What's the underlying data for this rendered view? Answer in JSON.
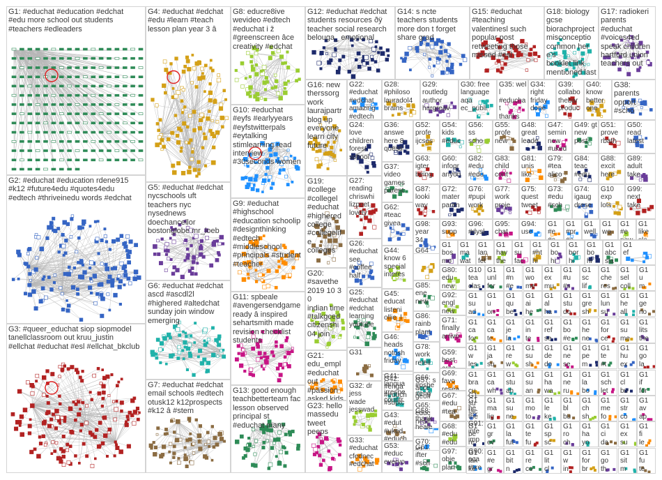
{
  "image_title": "",
  "groups": [
    {
      "id": "G1",
      "label": "G1: #educhat #education #edchat\n#edu more school out students\n#teachers #edleaders"
    },
    {
      "id": "G2",
      "label": "G2: #educhat #education rdene915\n#k12 #future4edu #quotes4edu\n#edtech #thriveinedu words #edchat"
    },
    {
      "id": "G3",
      "label": "G3: #queer_educhat siop siopmodel\ntanellclassroom out kruu_justin\n#ellchat #educhat #esl #ellchat_bkclub"
    },
    {
      "id": "G4",
      "label": "G4: #educhat #edchat\n#edu #learn #teach\nlesson plan year 3 â"
    },
    {
      "id": "G5",
      "label": "G5: #educhat #edchat\nnycschools uft\nteachers nyc\nnysednews\ndoechancellor\nbostonglobe mr_loeb"
    },
    {
      "id": "G6",
      "label": "G6: #educhat #edchat\nascd #ascdl2l\n#highered #altedchat\nsunday join window\nemerging"
    },
    {
      "id": "G7",
      "label": "G7: #educhat #edchat\nemail schools #edtech\notusk12 k12prospects\n#k12 â #stem"
    },
    {
      "id": "G8",
      "label": "G8: educre8ive\nwevideo #edtech\n#educhat i ž\n#greenscreen âce\ncreativity #edchat"
    },
    {
      "id": "G9",
      "label": "G9: #educhat\n#highschool\n#education schoolip\n#designthinking\n#edtech\n#middleschool\n#principals #student\n#teacher"
    },
    {
      "id": "G10",
      "label": "G10: #educhat\n#eyfs #earlyyears\n#eyfstwitterpals\n#eytalking\nstimlearning read\ninterview\n#30seconds women"
    },
    {
      "id": "G11",
      "label": "G11: spbeale\n#avengersendgame\nready â inspired\nsehartsmith made\nrevision checklist\nstudents"
    },
    {
      "id": "G12",
      "label": "G12: #educhat #edchat\nstudents resources ðÿ\nteacher social research\nbelouga_ emotional"
    },
    {
      "id": "G13",
      "label": "G13: good enough\nteachbetterteam fac\nlesson observed\nprincipal st\n#educhat many"
    },
    {
      "id": "G14",
      "label": "G14: s ncte\nteachers students\nmore don t forget\nshare grad"
    },
    {
      "id": "G15",
      "label": "G15: #educhat\n#teaching\nvalentinesl such\npopular post\nretweeting those\nmissed #esl"
    },
    {
      "id": "G16",
      "label": "G16: new\ntherssorg\nwork\nlaurajpartr\nblog up\neveryone\nlearn city\nfuture"
    },
    {
      "id": "G17",
      "label": "G17: radiokeri\nparents\n#educhat\n#voices4ed\nspeak children\nhartford union\nteachers out"
    },
    {
      "id": "G18",
      "label": "G18: biology\ngcse\nbiorachproject\nmisconceptio\ncommon here's\nbooklet link\nmentioned last"
    },
    {
      "id": "G19",
      "label": "G19:\n#college\n#collegel\n#educhat\n#highered\ncollege\n#collegelife\ncolleges"
    },
    {
      "id": "G20",
      "label": "G20:\n#savethe\n2019 10 30\nindian time\n#talkgced\ncitizenshi\n04 join"
    },
    {
      "id": "G21",
      "label": "G21:\nedu_empl\n#educhat\nout\n#passion\nasked kids\ndraw"
    },
    {
      "id": "G22",
      "label": "G22:\n#educhat\n#edchat\namazing\n#edtech\nhappy"
    },
    {
      "id": "G23",
      "label": "G23: hello\nmassedu\ntweet\npeeps"
    },
    {
      "id": "G24",
      "label": "G24:\nlove\nchildren\nforest\nschool"
    },
    {
      "id": "G25",
      "label": "G25:\n#educhat\n#edchat\nlearning\nyoutube"
    },
    {
      "id": "G26",
      "label": "G26:\n#educhat\nsee\n#coffee\nhalf"
    },
    {
      "id": "G27",
      "label": "G27:\nreading\nchriswhi\nlizpoet\nlovely"
    },
    {
      "id": "G28",
      "label": "G28:\n#philoso\nlauradol4\nbrains"
    },
    {
      "id": "G29",
      "label": "G29:\nroutledg\nauthor\nhargreav"
    },
    {
      "id": "G30",
      "label": "G30: free\nlanguage\naqa\nec_publi"
    },
    {
      "id": "G31",
      "label": "G31"
    },
    {
      "id": "G32",
      "label": "G32: dr\njess\nwade\njesswad"
    },
    {
      "id": "G33",
      "label": "G33:\n#educhat\ncfednec\n#edchat"
    },
    {
      "id": "G34",
      "label": "G34:\nright\nfriday\ndone"
    },
    {
      "id": "G35",
      "label": "G35: well\n#educhat\nthanks\nmathieu"
    },
    {
      "id": "G36",
      "label": "G36:\nanswe\nhere 8\nquesti"
    },
    {
      "id": "G37",
      "label": "G37:\nvideo\ngames\nparent"
    },
    {
      "id": "G38",
      "label": "G38:\nparents\nopport\n#scho"
    },
    {
      "id": "G39",
      "label": "G39:\ncollabo\nthebar\nproduc"
    },
    {
      "id": "G40",
      "label": "G40:\nknow\nbetter\none"
    },
    {
      "id": "G41",
      "label": "G41:\nlangua\nirrespe\ncountr"
    },
    {
      "id": "G42",
      "label": "G42:\n#enga\n#educh\n#suptc"
    },
    {
      "id": "G43",
      "label": "G43:\n#edut\n#uked\n#educh"
    },
    {
      "id": "G44",
      "label": "G44:\nknow 6\nspecial\ninteres"
    },
    {
      "id": "G45",
      "label": "G45:\neducat\nlisteni\nollie_l"
    },
    {
      "id": "G46",
      "label": "G46:\nheads\nnotosh\nfriday"
    },
    {
      "id": "G47",
      "label": "G47:\nsemin\nnew\n#uked"
    },
    {
      "id": "G48",
      "label": "G48:\ngreat\nleade"
    },
    {
      "id": "G49",
      "label": "G49: gt\nnew\npost"
    },
    {
      "id": "G50",
      "label": "G50:\nread\nlatest"
    },
    {
      "id": "G51",
      "label": "G51:\nprove\nrbath"
    },
    {
      "id": "G52",
      "label": "G52:\nprofe\nijcses"
    },
    {
      "id": "G53",
      "label": "G53:\n#educ\neveryo"
    },
    {
      "id": "G54",
      "label": "G54:\nkids\n#educ"
    },
    {
      "id": "G55",
      "label": "G55:\nprofe\nnew"
    },
    {
      "id": "G56",
      "label": "G56:\nss\nscho"
    },
    {
      "id": "G57",
      "label": "G57: s\nacce\ngeoff"
    },
    {
      "id": "G58",
      "label": "G58:\nthank\nheale"
    },
    {
      "id": "G59",
      "label": "G59:\nbost\narea"
    },
    {
      "id": "G60",
      "label": "G60:\ninfogr\nanyon"
    },
    {
      "id": "G61",
      "label": "G61:\nifter\n#sch"
    },
    {
      "id": "G62",
      "label": "G62:\n#teac\ngivea"
    },
    {
      "id": "G63",
      "label": "G63:\nigter\nbeing"
    },
    {
      "id": "G64",
      "label": "G64"
    },
    {
      "id": "G65",
      "label": "G65:\neduc\nnesli"
    },
    {
      "id": "G66",
      "label": "G66:\n#pshe\n#eng"
    },
    {
      "id": "G67",
      "label": "G67:\n#edu\n#tea"
    },
    {
      "id": "G68",
      "label": "G68:\n#edu\n#edu"
    },
    {
      "id": "G69",
      "label": "G69:\nfavo\nresea"
    },
    {
      "id": "G70",
      "label": "G70:\nict\neduc"
    },
    {
      "id": "G71",
      "label": "G71:\nfinally\narrivo"
    },
    {
      "id": "G72",
      "label": "G72:\nmater\nparen"
    },
    {
      "id": "G73",
      "label": "G73:\n#edu\n#sch"
    },
    {
      "id": "G74",
      "label": "G74:\nigaug\ndrese"
    },
    {
      "id": "G75",
      "label": "G75:\nquest\ntweet"
    },
    {
      "id": "G76",
      "label": "G76:\n#pupi\nwork"
    },
    {
      "id": "G77",
      "label": "G77:\nwork\nproje"
    },
    {
      "id": "G78",
      "label": "G78:\nwork\nretell"
    },
    {
      "id": "G79",
      "label": "G79:\n#tea\nalico"
    },
    {
      "id": "G80",
      "label": "G80:\nedu\nnew"
    },
    {
      "id": "G81",
      "label": "G81:\nunis\nlike"
    },
    {
      "id": "G82",
      "label": "G82:\n#edu\n#edu"
    },
    {
      "id": "G83",
      "label": "G83:\nchild\ncont"
    },
    {
      "id": "G84",
      "label": "G84:\nteac\n#edu"
    },
    {
      "id": "G85",
      "label": "G85:\nene\nnew"
    },
    {
      "id": "G86",
      "label": "G86:\nrainb\nplant"
    },
    {
      "id": "G87",
      "label": "G87:\nlooki\nway"
    },
    {
      "id": "G88",
      "label": "G88:\nexcit\nhere"
    },
    {
      "id": "G89",
      "label": "G89:\nadult\ntake"
    },
    {
      "id": "G90",
      "label": "G90:\naca\n#txe"
    },
    {
      "id": "G91",
      "label": "G91:\ninte\nimp"
    },
    {
      "id": "G92",
      "label": "G92:\nengl\nnew"
    },
    {
      "id": "G93",
      "label": "G93:\nsupp"
    },
    {
      "id": "G94",
      "label": "G94:\nuse"
    },
    {
      "id": "G95",
      "label": "G95:\nchat"
    },
    {
      "id": "G96",
      "label": "G96:\n#dysl"
    },
    {
      "id": "G97",
      "label": "G97:\nobje\nplan"
    },
    {
      "id": "G98",
      "label": "G98:\nyear\n34"
    },
    {
      "id": "G99",
      "label": "G99:\nnext\ntake"
    },
    {
      "id": "G100",
      "label": "G10\nexp\nlots"
    },
    {
      "id": "G101",
      "label": "G1\nbos\nmo"
    },
    {
      "id": "G102",
      "label": "G1\nma\nwat"
    },
    {
      "id": "G103",
      "label": "G1\nlan\nfet"
    },
    {
      "id": "G104",
      "label": "G1\nhav\nthe"
    },
    {
      "id": "G105",
      "label": "G1\n#e\n#e"
    },
    {
      "id": "G106",
      "label": "G1\n#pr\n#e"
    },
    {
      "id": "G107",
      "label": "G1\nsu\nfac"
    },
    {
      "id": "G108",
      "label": "G1\nbo\nhi"
    },
    {
      "id": "G109",
      "label": "G1\nabc\nsla"
    },
    {
      "id": "G110",
      "label": "G1\nwell"
    },
    {
      "id": "G111",
      "label": "G1\nsu\nfac"
    },
    {
      "id": "G112",
      "label": "G1\n#ht\nhi"
    },
    {
      "id": "G113",
      "label": "G1\nbo\nhi"
    },
    {
      "id": "G114",
      "label": "G1\nbor\nhi"
    },
    {
      "id": "G115",
      "label": "G1\nwo"
    },
    {
      "id": "G116",
      "label": "G1\n#e\nnew"
    },
    {
      "id": "G117",
      "label": "G1\nlike\nsle"
    },
    {
      "id": "G118",
      "label": "G1\nef"
    }
  ],
  "grid_labels": [
    "G10\ntea\nclas",
    "G1\nunl\nfor",
    "G1\n#n\n#e",
    "G1\nwo\nme",
    "G1\nex\nmu",
    "G1\n#u\n#s",
    "G1\nsc\nlif",
    "G1\nche\nres",
    "G1\nsel\ncoll",
    "G1\nu\nm",
    "G1\nsu\nad",
    "G1\nu\non",
    "G1\nqu\nbe",
    "G1\nai\nhe",
    "G1\nal\nha",
    "G1\nstu\ndo",
    "G1\ngre\nsh",
    "G1\nlun\nsu",
    "G1\nhe\nall",
    "G1\nge\nno",
    "G1\nca\nfor",
    "G1\nca\nte",
    "G1\nje\nla",
    "G1\nin\nte",
    "G1\nref\nse",
    "G1\nbo\n#e",
    "G1\nhe\nne",
    "G1\nfor\nce",
    "G1\nsu\nme",
    "G1\nlits\nthe",
    "G1\nw\nles",
    "G1\nja\nsu",
    "G1\nre\nw",
    "G1\nsu\nsh",
    "G1\nde\ndo",
    "G1\nne\nse",
    "G1\npe\nm",
    "G1\nte\n#t",
    "G1\nhu\nex",
    "G1\ngo\nla",
    "G1\nbra\ncu",
    "G1\nca\nwh",
    "G1\nstu\nah",
    "G1\nsu\nan",
    "G1\nha\nwa",
    "G1\nne\nru",
    "G1\nla\nbo",
    "G1\nsch\nlet",
    "G1\ncl\nbu",
    "G1\nif\nfor",
    "G1\nhe\nthe",
    "G1\nma\nlig",
    "G1\nsu\nne",
    "G1\nmo\nto",
    "G1\nle\nke",
    "G1\nbl\nbu",
    "G1\nch\nsh",
    "G1\nme\nfo",
    "G1\nstr\nco",
    "G1\nav\nap",
    "G1\nbe\nre",
    "G1\ngr\nev",
    "G1\nla\nfut",
    "G1\nte\nfu",
    "G1\nsp\nsc",
    "G1\nro\nch",
    "G1\nha\nyo",
    "G1\nci\nda",
    "G1\nex\nsu",
    "G1\nfi\nle",
    "G1\ntak\nke",
    "G1\n#e\ngr",
    "G1\nbit\nn",
    "G1\nre\nco",
    "G1\nlit\ncl",
    "G1\nw\nin",
    "G1\nfor\nbr",
    "G1\ngo\nth",
    "G1\nsit\nm",
    "G1\nfu\nte"
  ]
}
